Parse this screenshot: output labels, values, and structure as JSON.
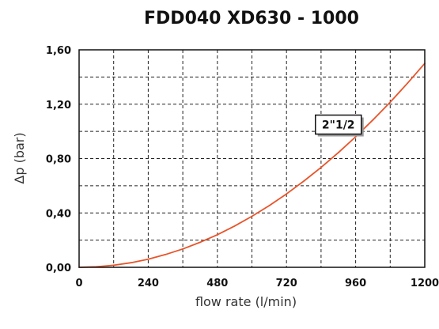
{
  "chart_data": {
    "type": "line",
    "title": "FDD040 XD630 - 1000",
    "xlabel": "flow rate (l/min)",
    "ylabel": "Δp (bar)",
    "xlim": [
      0,
      1200
    ],
    "ylim": [
      0,
      1.6
    ],
    "x_ticks": [
      "0",
      "240",
      "480",
      "720",
      "960",
      "1200"
    ],
    "y_ticks": [
      "0,00",
      "0,40",
      "0,80",
      "1,20",
      "1,60"
    ],
    "grid": true,
    "series": [
      {
        "name": "2\"1/2",
        "color": "#e8542a",
        "x": [
          0,
          60,
          120,
          180,
          240,
          300,
          360,
          420,
          480,
          540,
          600,
          660,
          720,
          780,
          840,
          900,
          960,
          1020,
          1080,
          1140,
          1200
        ],
        "y": [
          0,
          0.004,
          0.015,
          0.034,
          0.06,
          0.094,
          0.135,
          0.184,
          0.24,
          0.304,
          0.375,
          0.454,
          0.54,
          0.634,
          0.735,
          0.844,
          0.96,
          1.084,
          1.215,
          1.354,
          1.5
        ]
      }
    ],
    "annotations": [
      {
        "text": "2\"1/2",
        "x": 900,
        "y": 1.05
      }
    ]
  },
  "colors": {
    "curve": "#e8542a",
    "grid": "#222222"
  }
}
